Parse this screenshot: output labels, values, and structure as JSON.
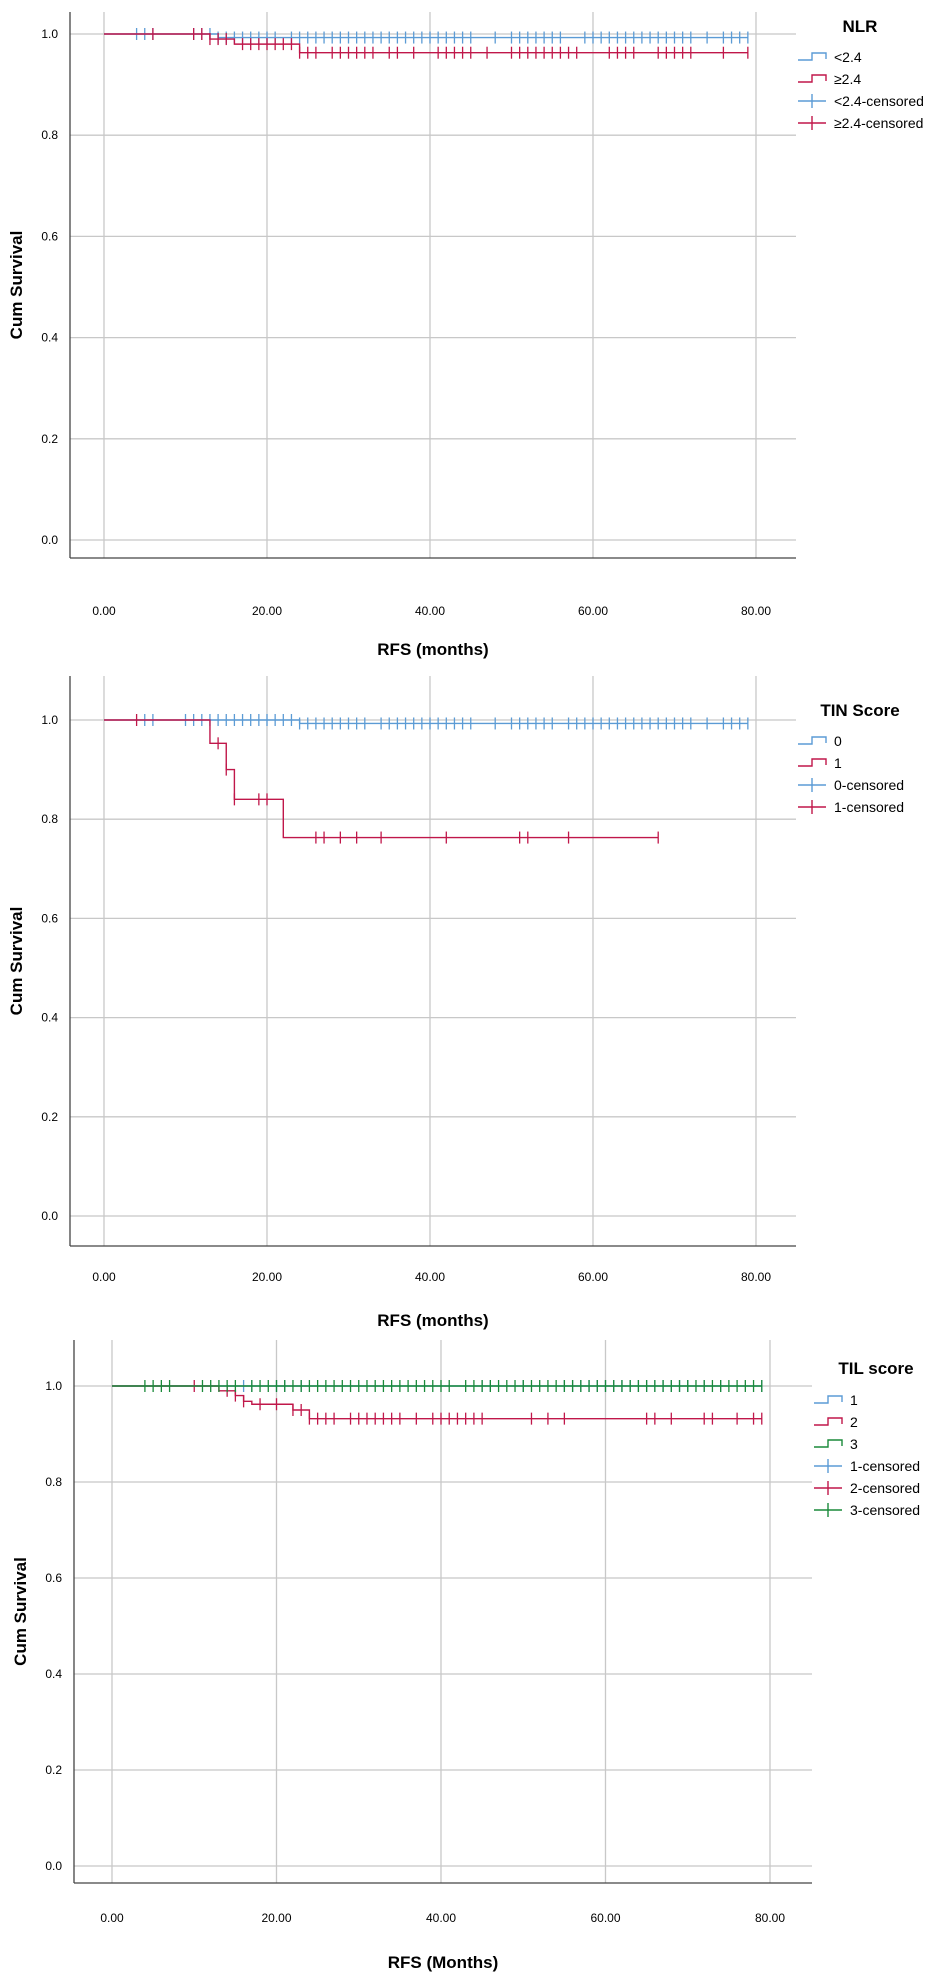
{
  "chart_data": [
    {
      "type": "line",
      "subtype": "kaplan-meier",
      "ylabel": "Cum Survival",
      "xlabel": "RFS (months)",
      "xlim": [
        0,
        80
      ],
      "ylim": [
        0,
        1.0
      ],
      "x_ticks": [
        "0.00",
        "20.00",
        "40.00",
        "60.00",
        "80.00"
      ],
      "y_ticks": [
        "0.0",
        "0.2",
        "0.4",
        "0.6",
        "0.8",
        "1.0"
      ],
      "grid": true,
      "legend_title": "NLR",
      "legend_position": "top-right",
      "legend": [
        "<2.4",
        "≥2.4",
        "<2.4-censored",
        "≥2.4-censored"
      ],
      "series": [
        {
          "name": "<2.4",
          "color": "#5b9bd5",
          "steps": [
            [
              0,
              1.0
            ],
            [
              14,
              0.993
            ],
            [
              79,
              0.993
            ]
          ],
          "censored": [
            4,
            5,
            6,
            11,
            12,
            13,
            14,
            15,
            16,
            17,
            18,
            19,
            20,
            21,
            23,
            24,
            25,
            26,
            27,
            28,
            29,
            30,
            31,
            32,
            33,
            34,
            35,
            36,
            37,
            38,
            39,
            40,
            41,
            42,
            43,
            44,
            45,
            48,
            50,
            51,
            52,
            53,
            54,
            55,
            56,
            59,
            60,
            61,
            62,
            63,
            64,
            65,
            66,
            67,
            68,
            69,
            70,
            71,
            72,
            74,
            76,
            77,
            78,
            79
          ]
        },
        {
          "name": "≥2.4",
          "color": "#c0174a",
          "steps": [
            [
              0,
              1.0
            ],
            [
              13,
              0.99
            ],
            [
              16,
              0.98
            ],
            [
              24,
              0.963
            ],
            [
              79,
              0.963
            ]
          ],
          "censored": [
            6,
            11,
            12,
            13,
            14,
            15,
            17,
            18,
            19,
            20,
            21,
            22,
            23,
            24,
            25,
            26,
            28,
            29,
            30,
            31,
            32,
            33,
            35,
            36,
            38,
            41,
            42,
            43,
            44,
            45,
            47,
            50,
            51,
            52,
            53,
            54,
            55,
            56,
            57,
            58,
            62,
            63,
            64,
            65,
            68,
            69,
            70,
            71,
            72,
            76,
            79
          ]
        }
      ]
    },
    {
      "type": "line",
      "subtype": "kaplan-meier",
      "ylabel": "Cum Survival",
      "xlabel": "RFS (months)",
      "xlim": [
        0,
        80
      ],
      "ylim": [
        0,
        1.0
      ],
      "x_ticks": [
        "0.00",
        "20.00",
        "40.00",
        "60.00",
        "80.00"
      ],
      "y_ticks": [
        "0.0",
        "0.2",
        "0.4",
        "0.6",
        "0.8",
        "1.0"
      ],
      "grid": true,
      "legend_title": "TIN Score",
      "legend_position": "top-right",
      "legend": [
        "0",
        "1",
        "0-censored",
        "1-censored"
      ],
      "series": [
        {
          "name": "0",
          "color": "#5b9bd5",
          "steps": [
            [
              0,
              1.0
            ],
            [
              24,
              0.993
            ],
            [
              79,
              0.993
            ]
          ],
          "censored": [
            5,
            6,
            10,
            11,
            12,
            13,
            14,
            15,
            16,
            17,
            18,
            19,
            20,
            21,
            22,
            23,
            24,
            25,
            26,
            27,
            28,
            29,
            30,
            31,
            32,
            34,
            35,
            36,
            37,
            38,
            39,
            40,
            41,
            42,
            43,
            44,
            45,
            48,
            50,
            51,
            52,
            53,
            54,
            55,
            57,
            58,
            59,
            60,
            61,
            62,
            63,
            64,
            65,
            66,
            67,
            68,
            69,
            70,
            71,
            72,
            74,
            76,
            77,
            78,
            79
          ]
        },
        {
          "name": "1",
          "color": "#c0174a",
          "steps": [
            [
              0,
              1.0
            ],
            [
              13,
              0.953
            ],
            [
              15,
              0.9
            ],
            [
              16,
              0.84
            ],
            [
              22,
              0.763
            ],
            [
              68,
              0.763
            ]
          ],
          "censored": [
            4,
            14,
            15,
            16,
            19,
            20,
            26,
            27,
            29,
            31,
            34,
            42,
            51,
            52,
            57,
            68
          ]
        }
      ]
    },
    {
      "type": "line",
      "subtype": "kaplan-meier",
      "ylabel": "Cum Survival",
      "xlabel": "RFS (Months)",
      "xlim": [
        0,
        80
      ],
      "ylim": [
        0,
        1.0
      ],
      "x_ticks": [
        "0.00",
        "20.00",
        "40.00",
        "60.00",
        "80.00"
      ],
      "y_ticks": [
        "0.0",
        "0.2",
        "0.4",
        "0.6",
        "0.8",
        "1.0"
      ],
      "grid": true,
      "legend_title": "TIL score",
      "legend_position": "top-right",
      "legend": [
        "1",
        "2",
        "3",
        "1-censored",
        "2-censored",
        "3-censored"
      ],
      "series": [
        {
          "name": "1",
          "color": "#5b9bd5",
          "steps": [
            [
              0,
              1.0
            ],
            [
              79,
              1.0
            ]
          ],
          "censored": [
            16,
            17,
            20,
            21,
            23,
            45,
            46,
            50,
            55,
            56,
            57,
            58,
            59,
            60,
            61,
            62,
            63,
            64,
            65,
            66,
            67,
            68,
            69,
            70,
            72,
            74,
            79
          ]
        },
        {
          "name": "2",
          "color": "#c0174a",
          "steps": [
            [
              0,
              1.0
            ],
            [
              13,
              0.99
            ],
            [
              15,
              0.98
            ],
            [
              16,
              0.968
            ],
            [
              17,
              0.962
            ],
            [
              22,
              0.95
            ],
            [
              24,
              0.932
            ],
            [
              79,
              0.932
            ]
          ],
          "censored": [
            10,
            14,
            15,
            16,
            18,
            20,
            22,
            23,
            24,
            25,
            26,
            27,
            29,
            30,
            31,
            32,
            33,
            34,
            35,
            37,
            39,
            40,
            41,
            42,
            43,
            44,
            45,
            51,
            53,
            55,
            65,
            66,
            68,
            72,
            73,
            76,
            78,
            79
          ]
        },
        {
          "name": "3",
          "color": "#1a8a3a",
          "steps": [
            [
              0,
              1.0
            ],
            [
              79,
              1.0
            ]
          ],
          "censored": [
            4,
            5,
            6,
            7,
            11,
            12,
            13,
            14,
            15,
            17,
            18,
            19,
            20,
            21,
            22,
            23,
            24,
            25,
            26,
            27,
            28,
            29,
            30,
            31,
            32,
            33,
            34,
            35,
            36,
            37,
            38,
            39,
            40,
            41,
            43,
            44,
            45,
            46,
            47,
            48,
            49,
            50,
            51,
            52,
            53,
            54,
            55,
            56,
            57,
            58,
            59,
            60,
            61,
            62,
            63,
            64,
            65,
            66,
            67,
            68,
            69,
            70,
            71,
            72,
            73,
            74,
            75,
            76,
            77,
            78,
            79
          ]
        }
      ]
    }
  ]
}
